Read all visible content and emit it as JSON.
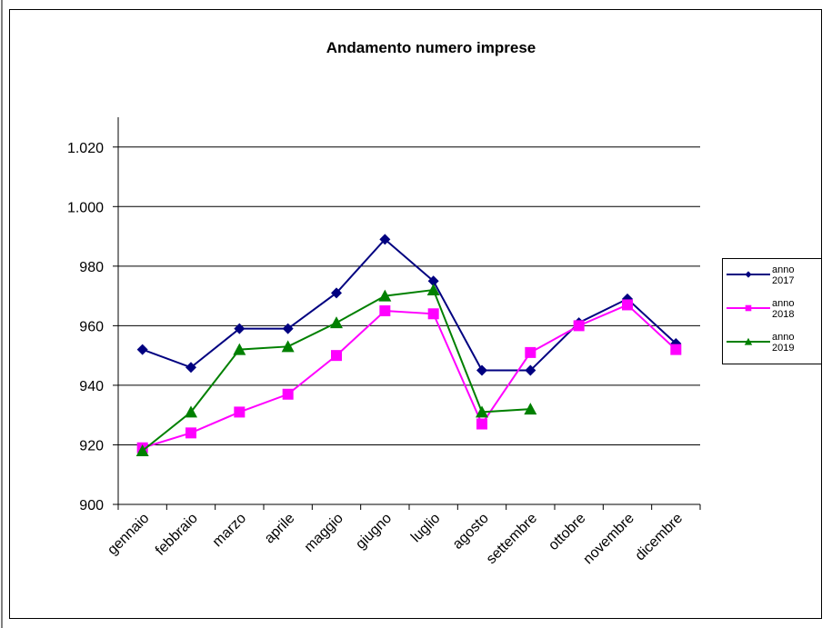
{
  "chart_data": {
    "type": "line",
    "title": "Andamento numero imprese",
    "categories": [
      "gennaio",
      "febbraio",
      "marzo",
      "aprile",
      "maggio",
      "giugno",
      "luglio",
      "agosto",
      "settembre",
      "ottobre",
      "novembre",
      "dicembre"
    ],
    "series": [
      {
        "name": "anno 2017",
        "color": "#000080",
        "marker": "diamond",
        "values": [
          952,
          946,
          959,
          959,
          971,
          989,
          975,
          945,
          945,
          961,
          969,
          954
        ]
      },
      {
        "name": "anno 2018",
        "color": "#ff00ff",
        "marker": "square",
        "values": [
          919,
          924,
          931,
          937,
          950,
          965,
          964,
          927,
          951,
          960,
          967,
          952
        ]
      },
      {
        "name": "anno 2019",
        "color": "#008000",
        "marker": "triangle",
        "values": [
          918,
          931,
          952,
          953,
          961,
          970,
          972,
          931,
          932,
          null,
          null,
          null
        ]
      }
    ],
    "ylim": [
      900,
      1030
    ],
    "yticks": [
      900,
      920,
      940,
      960,
      980,
      {
        "value": 1000,
        "label": "1.000"
      },
      {
        "value": 1020,
        "label": "1.020"
      }
    ],
    "grid": true,
    "legend": "right"
  }
}
